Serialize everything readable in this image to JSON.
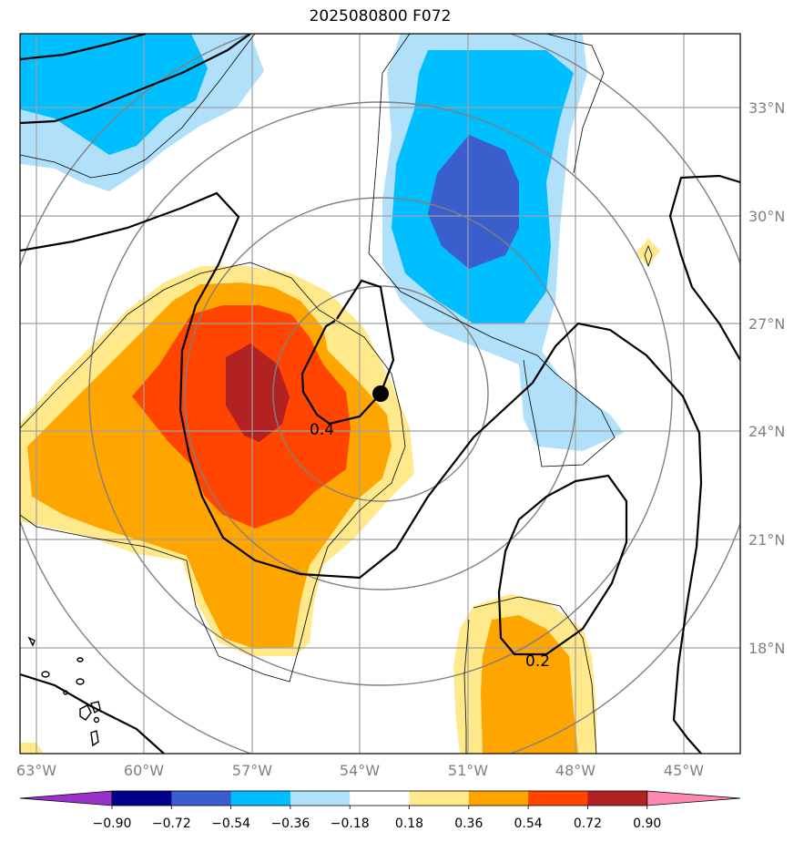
{
  "title": "2025080800 F072",
  "lat_labels": [
    "33°N",
    "30°N",
    "27°N",
    "24°N",
    "21°N",
    "18°N"
  ],
  "lon_labels": [
    "63°W",
    "60°W",
    "57°W",
    "54°W",
    "51°W",
    "48°W",
    "45°W"
  ],
  "colorbar": {
    "ticks": [
      "−0.90",
      "−0.72",
      "−0.54",
      "−0.36",
      "−0.18",
      "0.18",
      "0.36",
      "0.54",
      "0.72",
      "0.90"
    ],
    "colors": [
      "#9932cc",
      "#00008b",
      "#3a5fcd",
      "#00bfff",
      "#b0e0fa",
      "#ffffff",
      "#ffe98a",
      "#ffa500",
      "#ff4500",
      "#b22222",
      "#ff88b0"
    ]
  },
  "contour_labels": [
    "0.4",
    "0.2"
  ],
  "colors": {
    "pos_1": "#ffe98a",
    "pos_2": "#ffa500",
    "pos_3": "#ff4500",
    "pos_4": "#b22222",
    "neg_1": "#b0e0fa",
    "neg_2": "#00bfff",
    "neg_3": "#3a5fcd",
    "grid": "#a0a0a0",
    "range_rings": "#808080"
  },
  "storm_center": {
    "lat": 25.0,
    "lon": -53.4
  }
}
